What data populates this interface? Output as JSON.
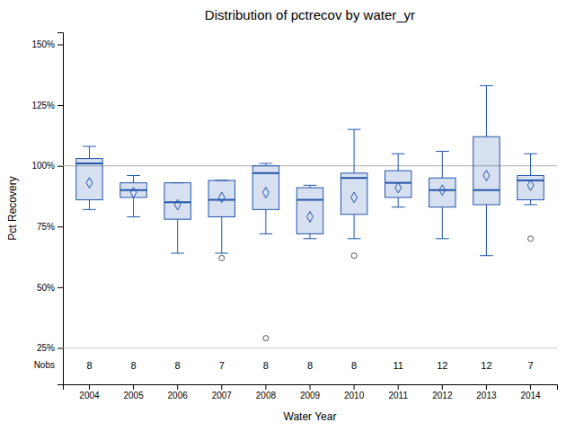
{
  "chart_data": {
    "type": "box",
    "title": "Distribution of pctrecov by water_yr",
    "xlabel": "Water Year",
    "ylabel": "Pct Recovery",
    "categories": [
      "2004",
      "2005",
      "2006",
      "2007",
      "2008",
      "2009",
      "2010",
      "2011",
      "2012",
      "2013",
      "2014"
    ],
    "q1": [
      86,
      87,
      78,
      79,
      82,
      72,
      80,
      87,
      83,
      84,
      86
    ],
    "median": [
      101,
      90,
      85,
      86,
      97,
      86,
      95,
      93,
      90,
      90,
      94
    ],
    "q3": [
      103,
      93,
      93,
      94,
      100,
      91,
      97,
      98,
      95,
      112,
      96
    ],
    "whislo": [
      82,
      79,
      64,
      64,
      72,
      70,
      70,
      83,
      70,
      63,
      84
    ],
    "whishi": [
      108,
      96,
      93,
      94,
      101,
      92,
      115,
      105,
      106,
      133,
      105
    ],
    "mean": [
      93,
      89,
      84,
      87,
      89,
      79,
      87,
      91,
      90,
      96,
      92
    ],
    "fliers": [
      [],
      [],
      [],
      [
        62
      ],
      [
        29
      ],
      [],
      [
        63
      ],
      [],
      [],
      [],
      [
        70
      ]
    ],
    "nobs_label": "Nobs",
    "nobs": [
      8,
      8,
      8,
      7,
      8,
      8,
      8,
      11,
      12,
      12,
      7
    ],
    "nobs_separator": 25,
    "ref_line": 100,
    "color": "#2255aa",
    "marker": "diamond",
    "grid": false,
    "ylim": [
      10,
      155
    ],
    "yticks": [
      {
        "value": 25,
        "label": "25%"
      },
      {
        "value": 50,
        "label": "50%"
      },
      {
        "value": 75,
        "label": "75%"
      },
      {
        "value": 100,
        "label": "100%"
      },
      {
        "value": 125,
        "label": "125%"
      },
      {
        "value": 150,
        "label": "150%"
      }
    ]
  }
}
